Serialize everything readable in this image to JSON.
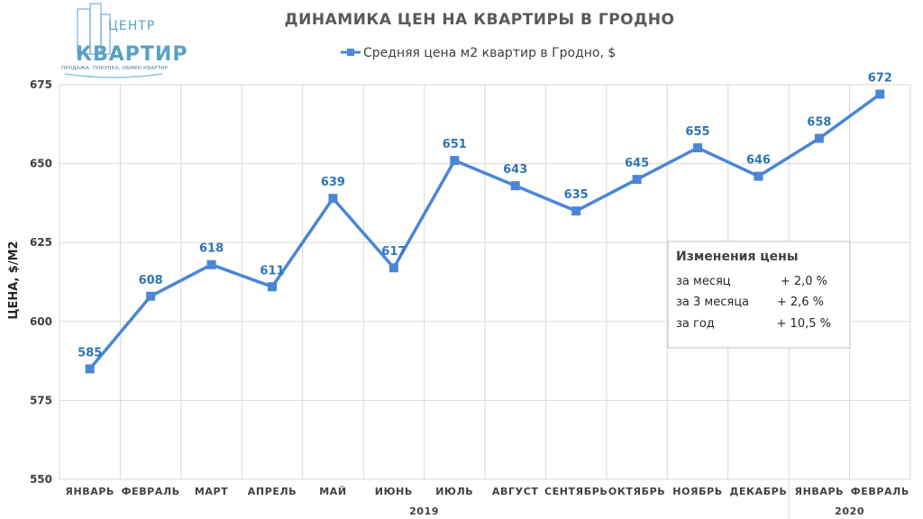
{
  "logo": {
    "line1": "ЦЕНТР",
    "line2": "КВАРТИР",
    "tagline": "ПРОДАЖА, ПОКУПКА, ОБМЕН КВАРТИР"
  },
  "colors": {
    "series": "#2e75b6",
    "line": "#4a86d8",
    "grid": "#d9d9d9"
  },
  "chart_data": {
    "type": "line",
    "title": "ДИНАМИКА ЦЕН НА КВАРТИРЫ В ГРОДНО",
    "ylabel": "ЦЕНА, $/М2",
    "xlabel": "",
    "ylim": [
      550,
      675
    ],
    "yticks": [
      "550",
      "575",
      "600",
      "625",
      "650",
      "675"
    ],
    "grid": true,
    "legend_position": "top",
    "categories": [
      "ЯНВАРЬ",
      "ФЕВРАЛЬ",
      "МАРТ",
      "АПРЕЛЬ",
      "МАЙ",
      "ИЮНЬ",
      "ИЮЛЬ",
      "АВГУСТ",
      "СЕНТЯБРЬ",
      "ОКТЯБРЬ",
      "НОЯБРЬ",
      "ДЕКАБРЬ",
      "ЯНВАРЬ",
      "ФЕВРАЛЬ"
    ],
    "year_groups": [
      {
        "label": "2019",
        "from": 0,
        "to": 11
      },
      {
        "label": "2020",
        "from": 12,
        "to": 13
      }
    ],
    "series": [
      {
        "name": "Средняя цена м2 квартир в Гродно, $",
        "values": [
          585,
          608,
          618,
          611,
          639,
          617,
          651,
          643,
          635,
          645,
          655,
          646,
          658,
          672
        ]
      }
    ],
    "annotation": {
      "title": "Изменения цены",
      "rows": [
        {
          "label": "за месяц",
          "value": "+ 2,0 %"
        },
        {
          "label": "за 3 месяца",
          "value": "+ 2,6 %"
        },
        {
          "label": "за год",
          "value": "+ 10,5 %"
        }
      ]
    }
  }
}
